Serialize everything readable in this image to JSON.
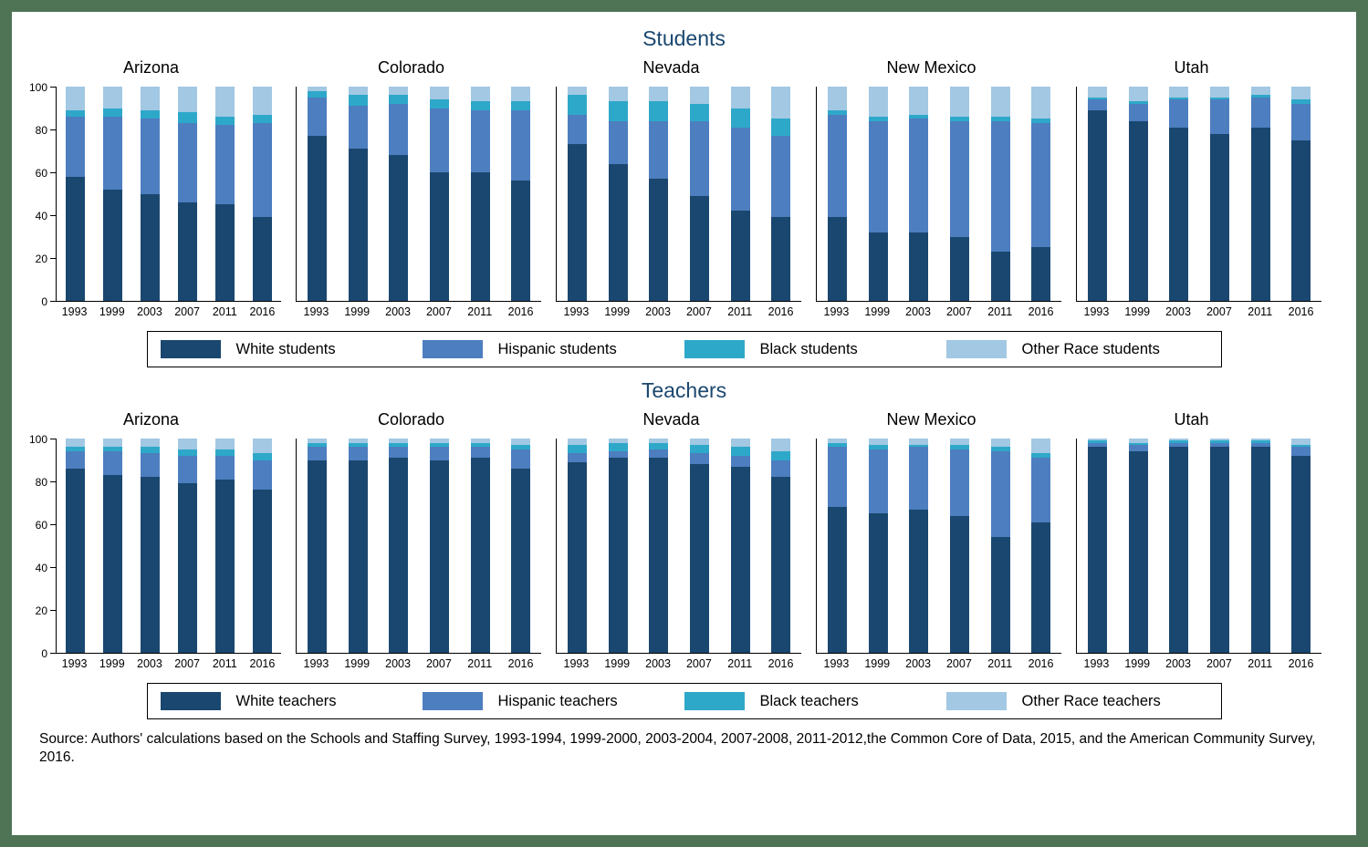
{
  "frame_color": "#4e7355",
  "colors": {
    "series": [
      "#1a476f",
      "#4d7ebf",
      "#2ea8c9",
      "#a2c8e3"
    ],
    "title": "#1a476f",
    "axis": "#000000"
  },
  "source_text": "Source: Authors' calculations based on the Schools and Staffing Survey, 1993-1994, 1999-2000, 2003-2004, 2007-2008, 2011-2012,the Common Core of Data, 2015, and the American Community Survey, 2016.",
  "chart_data": [
    {
      "type": "bar",
      "stacked": true,
      "title": "Students",
      "categories": [
        "1993",
        "1999",
        "2003",
        "2007",
        "2011",
        "2016"
      ],
      "ylim": [
        0,
        100
      ],
      "yticks": [
        0,
        20,
        40,
        60,
        80,
        100
      ],
      "grid": false,
      "legend_position": "bottom-box",
      "legend": [
        "White students",
        "Hispanic students",
        "Black students",
        "Other Race students"
      ],
      "groups": [
        {
          "name": "Arizona",
          "series": [
            {
              "name": "White students",
              "values": [
                58,
                52,
                50,
                46,
                45,
                39
              ]
            },
            {
              "name": "Hispanic students",
              "values": [
                28,
                34,
                35,
                37,
                37,
                44
              ]
            },
            {
              "name": "Black students",
              "values": [
                3,
                4,
                4,
                5,
                4,
                4
              ]
            },
            {
              "name": "Other Race students",
              "values": [
                11,
                10,
                11,
                12,
                14,
                13
              ]
            }
          ]
        },
        {
          "name": "Colorado",
          "series": [
            {
              "name": "White students",
              "values": [
                77,
                71,
                68,
                60,
                60,
                56
              ]
            },
            {
              "name": "Hispanic students",
              "values": [
                18,
                20,
                24,
                30,
                29,
                33
              ]
            },
            {
              "name": "Black students",
              "values": [
                3,
                5,
                4,
                4,
                4,
                4
              ]
            },
            {
              "name": "Other Race students",
              "values": [
                2,
                4,
                4,
                6,
                7,
                7
              ]
            }
          ]
        },
        {
          "name": "Nevada",
          "series": [
            {
              "name": "White students",
              "values": [
                73,
                64,
                57,
                49,
                42,
                39
              ]
            },
            {
              "name": "Hispanic students",
              "values": [
                14,
                20,
                27,
                35,
                39,
                38
              ]
            },
            {
              "name": "Black students",
              "values": [
                9,
                9,
                9,
                8,
                9,
                8
              ]
            },
            {
              "name": "Other Race students",
              "values": [
                4,
                7,
                7,
                8,
                10,
                15
              ]
            }
          ]
        },
        {
          "name": "New Mexico",
          "series": [
            {
              "name": "White students",
              "values": [
                39,
                32,
                32,
                30,
                23,
                25
              ]
            },
            {
              "name": "Hispanic students",
              "values": [
                48,
                52,
                53,
                54,
                61,
                58
              ]
            },
            {
              "name": "Black students",
              "values": [
                2,
                2,
                2,
                2,
                2,
                2
              ]
            },
            {
              "name": "Other Race students",
              "values": [
                11,
                14,
                13,
                14,
                14,
                15
              ]
            }
          ]
        },
        {
          "name": "Utah",
          "series": [
            {
              "name": "White students",
              "values": [
                89,
                84,
                81,
                78,
                81,
                75
              ]
            },
            {
              "name": "Hispanic students",
              "values": [
                5,
                8,
                13,
                16,
                14,
                17
              ]
            },
            {
              "name": "Black students",
              "values": [
                1,
                1,
                1,
                1,
                1,
                2
              ]
            },
            {
              "name": "Other Race students",
              "values": [
                5,
                7,
                5,
                5,
                4,
                6
              ]
            }
          ]
        }
      ]
    },
    {
      "type": "bar",
      "stacked": true,
      "title": "Teachers",
      "categories": [
        "1993",
        "1999",
        "2003",
        "2007",
        "2011",
        "2016"
      ],
      "ylim": [
        0,
        100
      ],
      "yticks": [
        0,
        20,
        40,
        60,
        80,
        100
      ],
      "grid": false,
      "legend_position": "bottom-box",
      "legend": [
        "White teachers",
        "Hispanic teachers",
        "Black teachers",
        "Other Race teachers"
      ],
      "groups": [
        {
          "name": "Arizona",
          "series": [
            {
              "name": "White teachers",
              "values": [
                86,
                83,
                82,
                79,
                81,
                76
              ]
            },
            {
              "name": "Hispanic teachers",
              "values": [
                8,
                11,
                11,
                13,
                11,
                14
              ]
            },
            {
              "name": "Black teachers",
              "values": [
                2,
                2,
                3,
                3,
                3,
                3
              ]
            },
            {
              "name": "Other Race teachers",
              "values": [
                4,
                4,
                4,
                5,
                5,
                7
              ]
            }
          ]
        },
        {
          "name": "Colorado",
          "series": [
            {
              "name": "White teachers",
              "values": [
                90,
                90,
                91,
                90,
                91,
                86
              ]
            },
            {
              "name": "Hispanic teachers",
              "values": [
                6,
                6,
                5,
                6,
                5,
                9
              ]
            },
            {
              "name": "Black teachers",
              "values": [
                2,
                2,
                2,
                2,
                2,
                2
              ]
            },
            {
              "name": "Other Race teachers",
              "values": [
                2,
                2,
                2,
                2,
                2,
                3
              ]
            }
          ]
        },
        {
          "name": "Nevada",
          "series": [
            {
              "name": "White teachers",
              "values": [
                89,
                91,
                91,
                88,
                87,
                82
              ]
            },
            {
              "name": "Hispanic teachers",
              "values": [
                4,
                3,
                4,
                5,
                5,
                8
              ]
            },
            {
              "name": "Black teachers",
              "values": [
                4,
                4,
                3,
                4,
                4,
                4
              ]
            },
            {
              "name": "Other Race teachers",
              "values": [
                3,
                2,
                2,
                3,
                4,
                6
              ]
            }
          ]
        },
        {
          "name": "New Mexico",
          "series": [
            {
              "name": "White teachers",
              "values": [
                68,
                65,
                67,
                64,
                54,
                61
              ]
            },
            {
              "name": "Hispanic teachers",
              "values": [
                28,
                30,
                29,
                31,
                40,
                30
              ]
            },
            {
              "name": "Black teachers",
              "values": [
                2,
                2,
                1,
                2,
                2,
                2
              ]
            },
            {
              "name": "Other Race teachers",
              "values": [
                2,
                3,
                3,
                3,
                4,
                7
              ]
            }
          ]
        },
        {
          "name": "Utah",
          "series": [
            {
              "name": "White teachers",
              "values": [
                96,
                94,
                96,
                96,
                96,
                92
              ]
            },
            {
              "name": "Hispanic teachers",
              "values": [
                2,
                3,
                2,
                2,
                2,
                4
              ]
            },
            {
              "name": "Black teachers",
              "values": [
                1,
                1,
                1,
                1,
                1,
                1
              ]
            },
            {
              "name": "Other Race teachers",
              "values": [
                1,
                2,
                1,
                1,
                1,
                3
              ]
            }
          ]
        }
      ]
    }
  ]
}
